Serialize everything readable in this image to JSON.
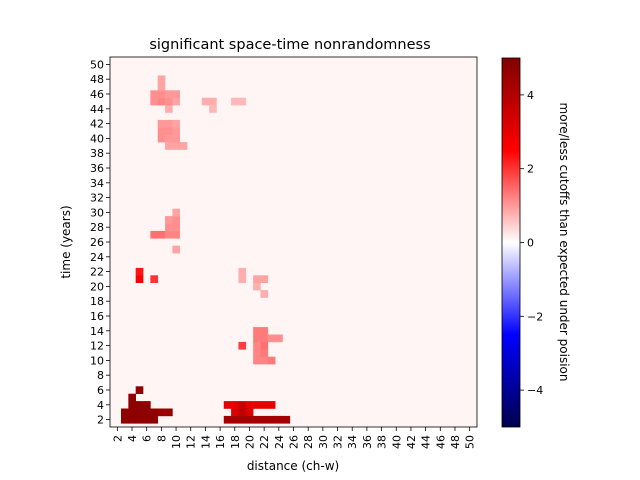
{
  "chart_data": {
    "type": "heatmap",
    "title": "significant space-time nonrandomness",
    "xlabel": "distance (ch-w)",
    "ylabel": "time (years)",
    "colorbar_label": "more/less cutoffs than expected under poision",
    "colormap": "seismic",
    "colormap_stops": [
      "#00004d",
      "#0000ff",
      "#ffffff",
      "#ff0000",
      "#800000"
    ],
    "clim": [
      -5,
      5
    ],
    "colorbar_ticks": [
      -4,
      -2,
      0,
      2,
      4
    ],
    "colorbar_tick_labels": [
      "−4",
      "−2",
      "0",
      "2",
      "4"
    ],
    "background_value": 0.1,
    "xlim": [
      1,
      51
    ],
    "ylim": [
      1,
      51
    ],
    "x_ticks": [
      2,
      4,
      6,
      8,
      10,
      12,
      14,
      16,
      18,
      20,
      22,
      24,
      26,
      28,
      30,
      32,
      34,
      36,
      38,
      40,
      42,
      44,
      46,
      48,
      50
    ],
    "y_ticks": [
      2,
      4,
      6,
      8,
      10,
      12,
      14,
      16,
      18,
      20,
      22,
      24,
      26,
      28,
      30,
      32,
      34,
      36,
      38,
      40,
      42,
      44,
      46,
      48,
      50
    ],
    "cells": [
      [
        3,
        2,
        4.7
      ],
      [
        4,
        2,
        4.7
      ],
      [
        5,
        2,
        4.7
      ],
      [
        6,
        2,
        4.7
      ],
      [
        7,
        2,
        4.7
      ],
      [
        3,
        3,
        4.7
      ],
      [
        4,
        3,
        4.7
      ],
      [
        5,
        3,
        4.7
      ],
      [
        6,
        3,
        4.7
      ],
      [
        7,
        3,
        4.7
      ],
      [
        8,
        3,
        4.5
      ],
      [
        9,
        3,
        4.5
      ],
      [
        4,
        4,
        4.7
      ],
      [
        5,
        4,
        4.7
      ],
      [
        6,
        4,
        4.7
      ],
      [
        4,
        5,
        4.7
      ],
      [
        5,
        6,
        4.7
      ],
      [
        17,
        2,
        4.3
      ],
      [
        18,
        2,
        4.3
      ],
      [
        19,
        2,
        4.3
      ],
      [
        20,
        2,
        4.3
      ],
      [
        21,
        2,
        4.3
      ],
      [
        22,
        2,
        4.3
      ],
      [
        23,
        2,
        4.3
      ],
      [
        24,
        2,
        4.3
      ],
      [
        25,
        2,
        4.3
      ],
      [
        18,
        3,
        3.2
      ],
      [
        19,
        3,
        3.8
      ],
      [
        20,
        3,
        3.2
      ],
      [
        17,
        4,
        3.0
      ],
      [
        18,
        4,
        3.0
      ],
      [
        19,
        4,
        3.6
      ],
      [
        20,
        4,
        3.0
      ],
      [
        21,
        4,
        3.0
      ],
      [
        22,
        4,
        3.0
      ],
      [
        23,
        4,
        3.0
      ],
      [
        19,
        12,
        1.9
      ],
      [
        21,
        10,
        1.2
      ],
      [
        22,
        10,
        1.2
      ],
      [
        23,
        10,
        1.3
      ],
      [
        21,
        11,
        1.2
      ],
      [
        22,
        11,
        1.3
      ],
      [
        21,
        12,
        1.2
      ],
      [
        22,
        12,
        1.4
      ],
      [
        21,
        13,
        1.3
      ],
      [
        22,
        13,
        1.3
      ],
      [
        23,
        13,
        1.1
      ],
      [
        24,
        13,
        1.1
      ],
      [
        21,
        14,
        1.3
      ],
      [
        22,
        14,
        1.3
      ],
      [
        22,
        19,
        0.8
      ],
      [
        21,
        20,
        0.8
      ],
      [
        21,
        21,
        0.9
      ],
      [
        22,
        21,
        0.9
      ],
      [
        19,
        21,
        0.8
      ],
      [
        19,
        22,
        0.8
      ],
      [
        5,
        21,
        2.6
      ],
      [
        5,
        22,
        2.3
      ],
      [
        7,
        21,
        2.0
      ],
      [
        10,
        25,
        0.9
      ],
      [
        7,
        27,
        1.4
      ],
      [
        8,
        27,
        1.4
      ],
      [
        9,
        27,
        1.2
      ],
      [
        10,
        27,
        1.2
      ],
      [
        9,
        28,
        1.1
      ],
      [
        10,
        28,
        1.1
      ],
      [
        9,
        29,
        1.0
      ],
      [
        10,
        29,
        1.1
      ],
      [
        10,
        30,
        0.9
      ],
      [
        9,
        39,
        0.9
      ],
      [
        10,
        39,
        0.9
      ],
      [
        11,
        39,
        0.9
      ],
      [
        8,
        40,
        1.1
      ],
      [
        9,
        40,
        1.0
      ],
      [
        10,
        40,
        1.0
      ],
      [
        8,
        41,
        1.1
      ],
      [
        9,
        41,
        1.1
      ],
      [
        10,
        41,
        1.0
      ],
      [
        8,
        42,
        1.0
      ],
      [
        9,
        42,
        1.0
      ],
      [
        10,
        42,
        0.9
      ],
      [
        9,
        44,
        0.8
      ],
      [
        7,
        45,
        1.1
      ],
      [
        8,
        45,
        1.2
      ],
      [
        9,
        45,
        1.1
      ],
      [
        10,
        45,
        0.9
      ],
      [
        14,
        45,
        0.8
      ],
      [
        15,
        45,
        0.8
      ],
      [
        18,
        45,
        0.7
      ],
      [
        19,
        45,
        0.7
      ],
      [
        7,
        46,
        1.1
      ],
      [
        8,
        46,
        1.1
      ],
      [
        9,
        46,
        1.0
      ],
      [
        10,
        46,
        1.0
      ],
      [
        8,
        47,
        0.9
      ],
      [
        8,
        48,
        0.9
      ],
      [
        15,
        44,
        0.7
      ]
    ]
  }
}
